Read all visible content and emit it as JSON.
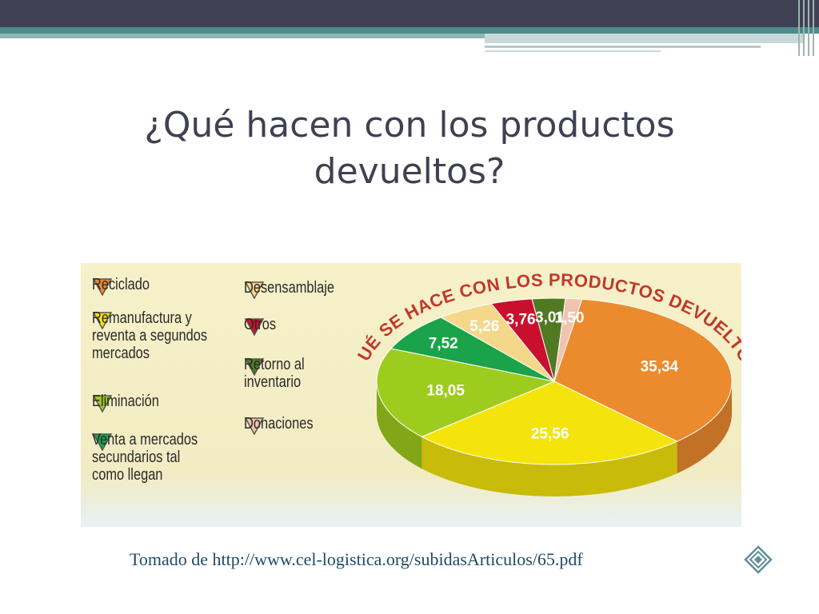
{
  "slide": {
    "title": "¿Qué hacen con los productos devueltos?",
    "source": "Tomado de http://www.cel-logistica.org/subidasArticulos/65.pdf"
  },
  "chart_data": {
    "type": "pie",
    "title": "¿QUÉ SE HACE CON LOS PRODUCTOS DEVUELTOS?",
    "slices": [
      {
        "label": "Reciclado",
        "value": 35.34,
        "value_label": "35,34",
        "color": "#ec8a2e"
      },
      {
        "label": "Remanufactura y\nreventa a segundos\nmercados",
        "value": 25.56,
        "value_label": "25,56",
        "color": "#f4e40b"
      },
      {
        "label": "Eliminación",
        "value": 18.05,
        "value_label": "18,05",
        "color": "#9dcc1f"
      },
      {
        "label": "Venta a mercados\nsecundarios tal\ncomo llegan",
        "value": 7.52,
        "value_label": "7,52",
        "color": "#1aa34a"
      },
      {
        "label": "Desensamblaje",
        "value": 5.26,
        "value_label": "5,26",
        "color": "#f5d78a"
      },
      {
        "label": "Otros",
        "value": 3.76,
        "value_label": "3,76",
        "color": "#c8102e"
      },
      {
        "label": "Retorno al\ninventario",
        "value": 3.01,
        "value_label": "3,01",
        "color": "#4f7a22"
      },
      {
        "label": "Donaciones",
        "value": 1.5,
        "value_label": "1,50",
        "color": "#f2c3ae"
      }
    ]
  },
  "legend": {
    "reciclado": "Reciclado",
    "remanufactura": "Remanufactura y\nreventa a segundos\nmercados",
    "eliminacion": "Eliminación",
    "venta": "Venta a mercados\nsecundarios tal\ncomo llegan",
    "desensamblaje": "Desensamblaje",
    "otros": "Otros",
    "retorno": "Retorno al\ninventario",
    "donaciones": "Donaciones"
  }
}
